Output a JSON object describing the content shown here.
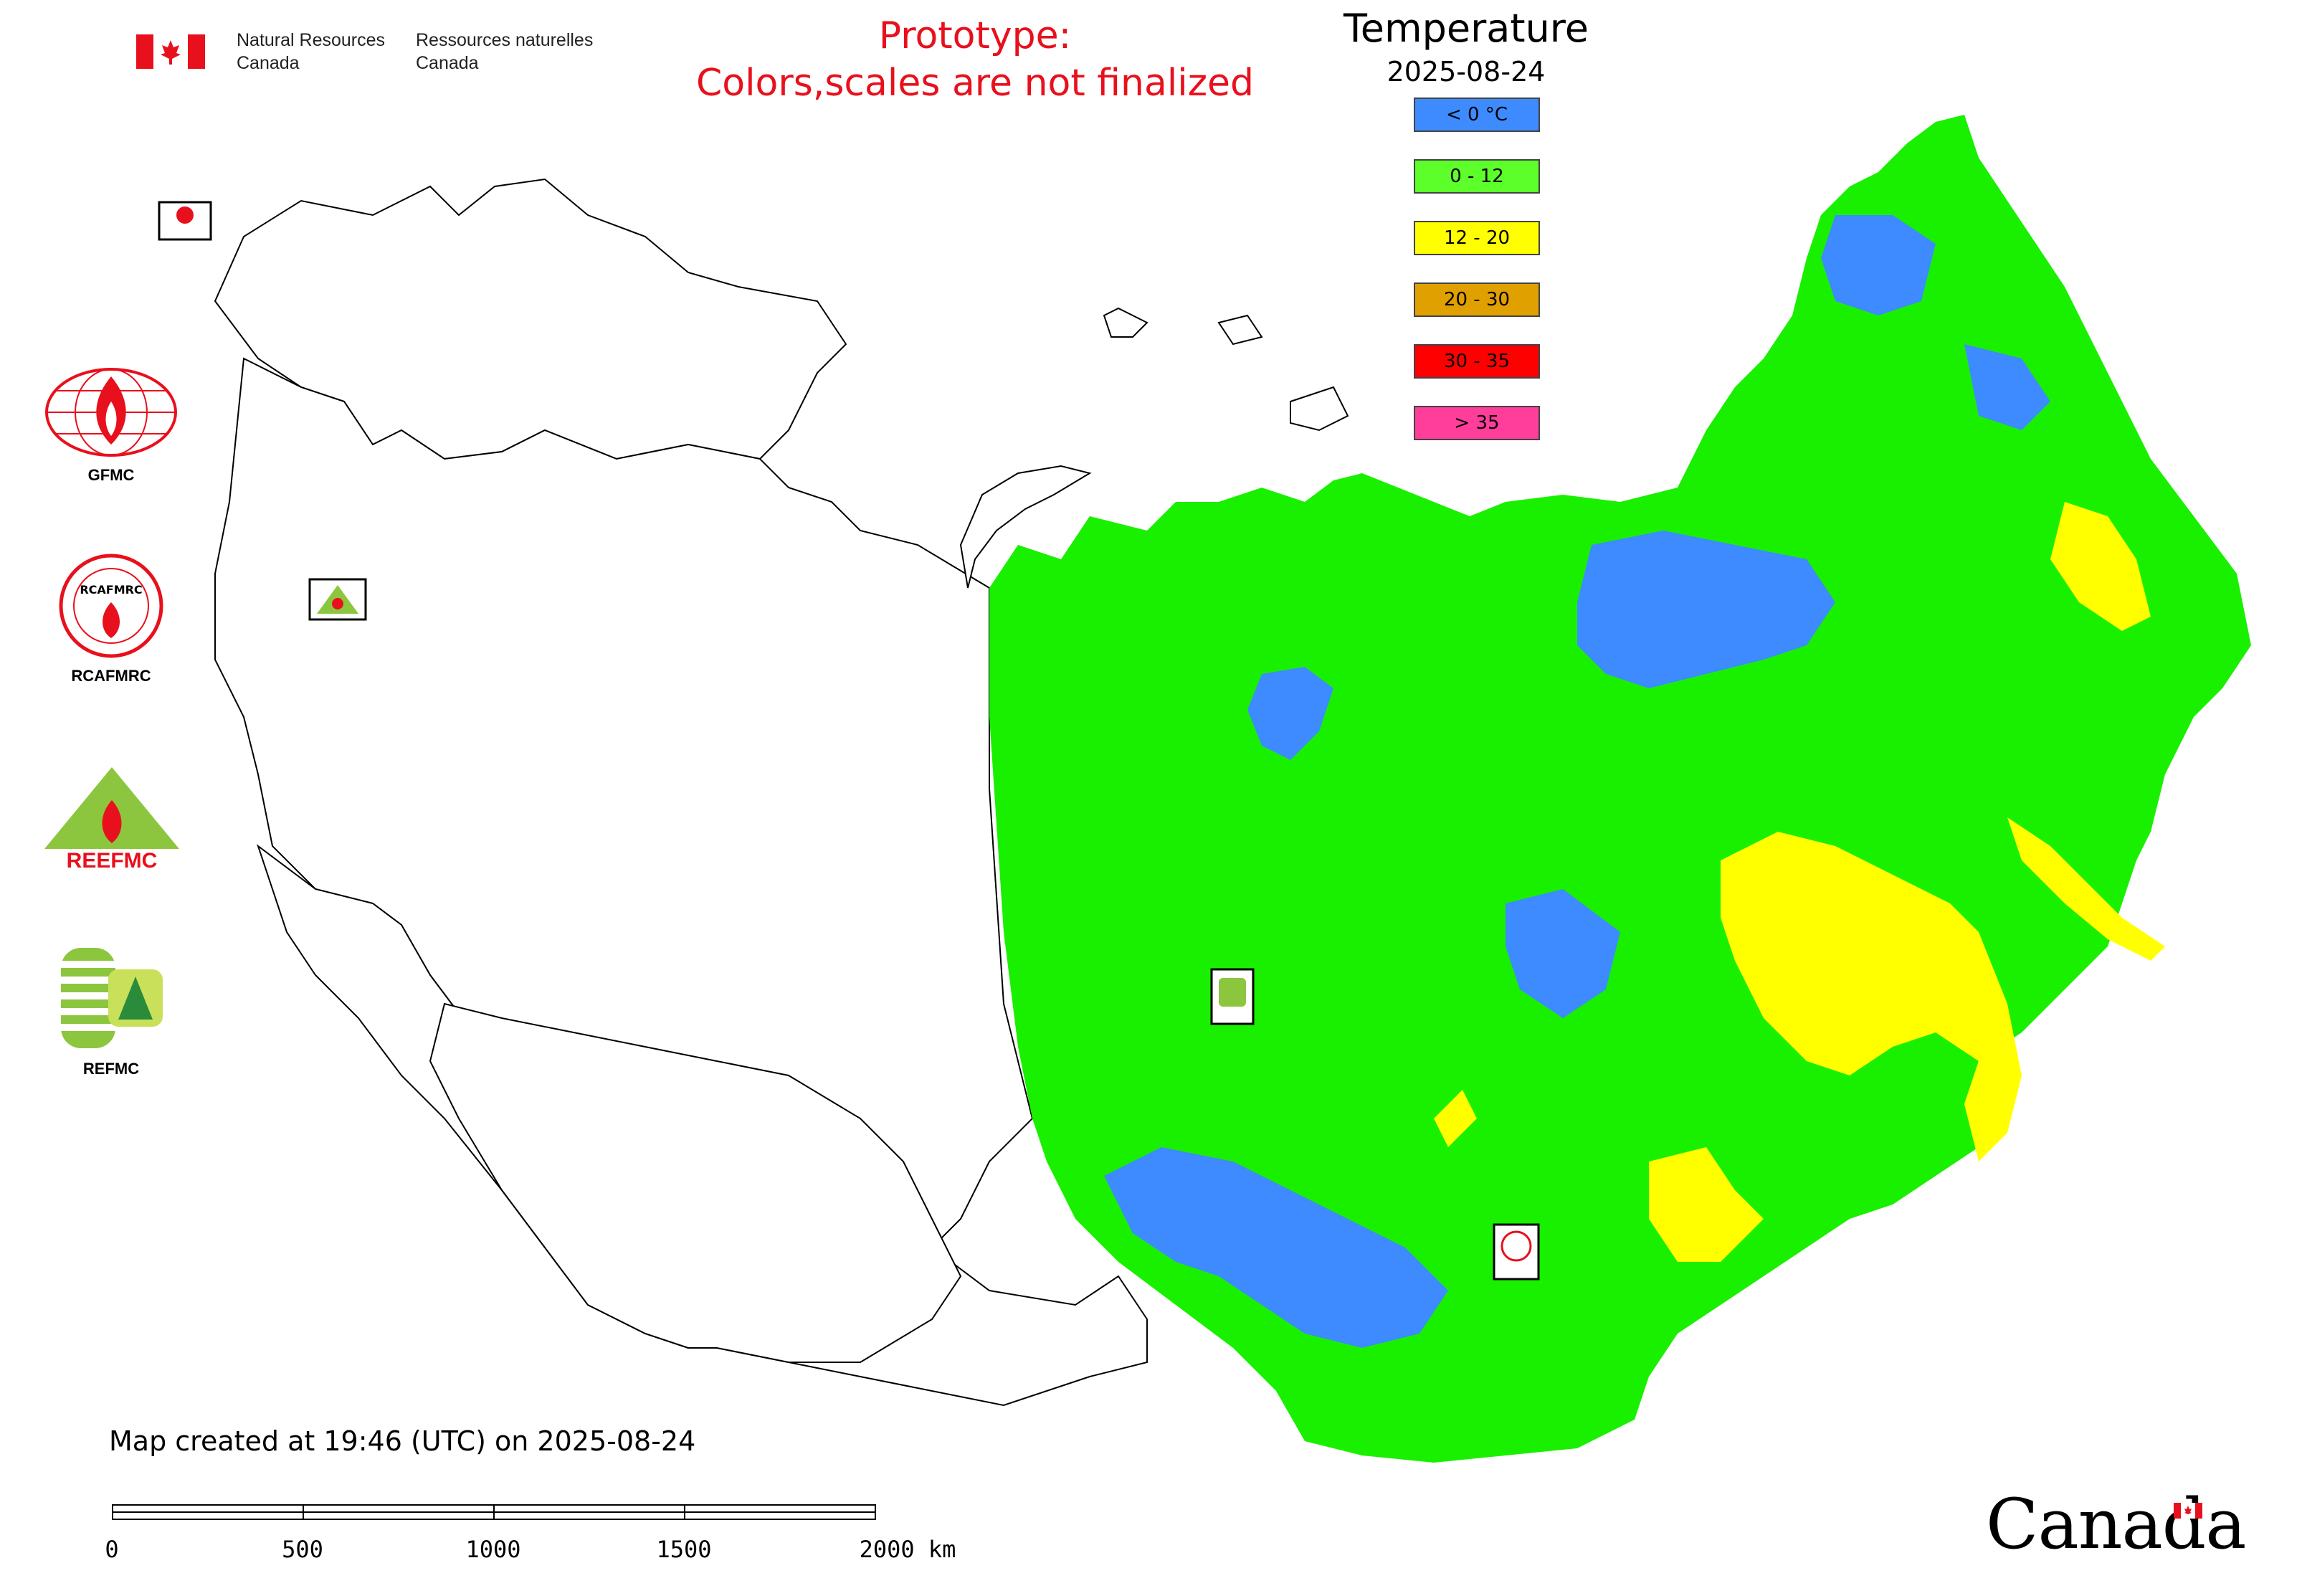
{
  "header": {
    "org_en": "Natural Resources\nCanada",
    "org_fr": "Ressources naturelles\nCanada"
  },
  "notice": {
    "line1": "Prototype:",
    "line2": "Colors,scales are not finalized"
  },
  "legend": {
    "title": "Temperature",
    "date": "2025-08-24",
    "items": [
      {
        "label": "< 0 °C",
        "color": "#3d8bff"
      },
      {
        "label": "0 - 12",
        "color": "#5cff2a"
      },
      {
        "label": "12 - 20",
        "color": "#ffff00"
      },
      {
        "label": "20 - 30",
        "color": "#e0a000"
      },
      {
        "label": "30 - 35",
        "color": "#ff0000"
      },
      {
        "label": "> 35",
        "color": "#ff3d9a"
      }
    ]
  },
  "logos": [
    {
      "name": "GFMC",
      "label": "GFMC"
    },
    {
      "name": "RCAFMRC",
      "label": "RCAFMRC"
    },
    {
      "name": "REEFMC",
      "label": ""
    },
    {
      "name": "REFMC",
      "label": "REFMC"
    }
  ],
  "map_markers": [
    {
      "label": "GFMC"
    },
    {
      "label": "REEFMC"
    },
    {
      "label": "REFMC"
    },
    {
      "label": "RCAFMRC"
    }
  ],
  "footer": {
    "created": "Map created at 19:46 (UTC) on 2025-08-24",
    "scale_ticks": [
      "0",
      "500",
      "1000",
      "1500",
      "2000 km"
    ],
    "wordmark": "Canada"
  },
  "colors": {
    "cold": "#3d8bff",
    "mild": "#19f000",
    "warm": "#ffff00",
    "notice": "#e8101c"
  }
}
